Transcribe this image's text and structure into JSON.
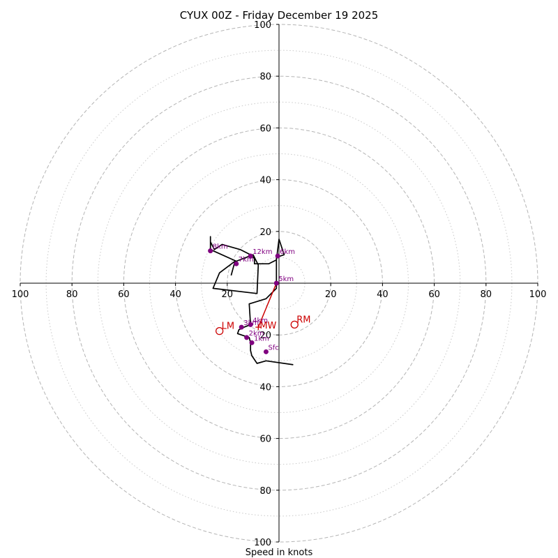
{
  "chart_data": {
    "type": "hodograph",
    "title": "CYUX 00Z - Friday December 19 2025",
    "xlabel": "Speed in knots",
    "units": "knots",
    "xlim": [
      -100,
      100
    ],
    "ylim": [
      -100,
      100
    ],
    "rings_major": [
      20,
      40,
      60,
      80,
      100
    ],
    "rings_minor": [
      10,
      30,
      50,
      70,
      90
    ],
    "axis_tick_labels": {
      "x_left": [
        "100",
        "80",
        "60",
        "40",
        "20"
      ],
      "x_right": [
        "20",
        "40",
        "60",
        "80",
        "100"
      ],
      "y_top": [
        "20",
        "40",
        "60",
        "80",
        "100"
      ],
      "y_bottom": [
        "20",
        "40",
        "60",
        "80",
        "100"
      ]
    },
    "trace": {
      "color": "#000000",
      "points": [
        [
          5.5,
          -31.5
        ],
        [
          -5,
          -30
        ],
        [
          -8.5,
          -31
        ],
        [
          -10.5,
          -28
        ],
        [
          -11,
          -26
        ],
        [
          -11,
          -23
        ],
        [
          -11.5,
          -21
        ],
        [
          -14.5,
          -20
        ],
        [
          -16,
          -19.5
        ],
        [
          -15.5,
          -18
        ],
        [
          -13.5,
          -17
        ],
        [
          -11,
          -16
        ],
        [
          -11.5,
          -8
        ],
        [
          -5,
          -6
        ],
        [
          -1,
          -2
        ],
        [
          -1,
          10
        ],
        [
          2,
          11
        ],
        [
          0,
          17
        ],
        [
          -1,
          9
        ],
        [
          -4,
          7.5
        ],
        [
          -9.5,
          7.5
        ],
        [
          -9.5,
          9.5
        ],
        [
          -11,
          11
        ],
        [
          -15,
          13
        ],
        [
          -22,
          15
        ],
        [
          -25,
          13
        ],
        [
          -26.5,
          16
        ],
        [
          -26.5,
          18
        ],
        [
          -26.5,
          13
        ],
        [
          -16.5,
          8.5
        ],
        [
          -10,
          11
        ],
        [
          -8,
          7
        ],
        [
          -8.5,
          -4
        ],
        [
          -25.5,
          -2
        ],
        [
          -23,
          4
        ],
        [
          -17,
          8.5
        ],
        [
          -18.5,
          3
        ]
      ]
    },
    "height_markers": {
      "color": "#800080",
      "points": [
        {
          "label": "Sfc",
          "u": -5,
          "v": -26.5
        },
        {
          "label": "1km",
          "u": -10.5,
          "v": -23
        },
        {
          "label": "2km",
          "u": -12.5,
          "v": -21
        },
        {
          "label": "3km",
          "u": -14.5,
          "v": -17
        },
        {
          "label": "4km",
          "u": -11,
          "v": -16
        },
        {
          "label": "5km",
          "u": -1,
          "v": 0
        },
        {
          "label": "6km",
          "u": -0.5,
          "v": 10.5
        },
        {
          "label": "7km",
          "u": -16.5,
          "v": 7.5
        },
        {
          "label": "8km",
          "u": -26.5,
          "v": 12.5
        },
        {
          "label": "12km",
          "u": -11,
          "v": 10.5
        }
      ]
    },
    "storm_motion": {
      "color": "#cc0000",
      "markers": [
        {
          "label": "LM",
          "u": -23,
          "v": -18.5
        },
        {
          "label": "RM",
          "u": 6,
          "v": -16
        }
      ],
      "mean_wind": {
        "label": "MW",
        "u": -8,
        "v": -17
      },
      "shear_vector": {
        "from": [
          -8,
          -17
        ],
        "to": [
          -1,
          0
        ]
      }
    }
  }
}
